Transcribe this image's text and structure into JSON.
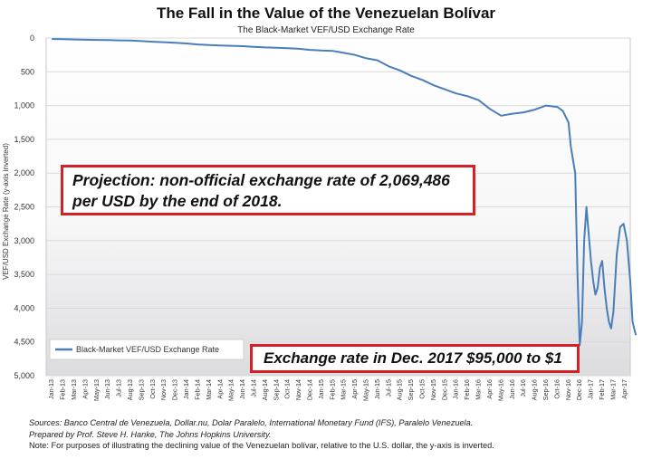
{
  "chart_data": {
    "type": "line",
    "title": "The Fall in the Value of the Venezuelan Bolívar",
    "subtitle": "The Black-Market VEF/USD Exchange Rate",
    "ylabel": "VEF/USD Exchange Rate (y-axis inverted)",
    "xlabel": "",
    "ylim": [
      0,
      5000
    ],
    "y_inverted": true,
    "y_ticks": [
      0,
      500,
      1000,
      1500,
      2000,
      2500,
      3000,
      3500,
      4000,
      4500,
      5000
    ],
    "y_tick_labels": [
      "0",
      "500",
      "1,000",
      "1,500",
      "2,000",
      "2,500",
      "3,000",
      "3,500",
      "4,000",
      "4,500",
      "5,000"
    ],
    "x_tick_labels": [
      "Jan-13",
      "Feb-13",
      "Mar-13",
      "Apr-13",
      "May-13",
      "Jun-13",
      "Jul-13",
      "Aug-13",
      "Sep-13",
      "Oct-13",
      "Nov-13",
      "Dec-13",
      "Jan-14",
      "Feb-14",
      "Mar-14",
      "Apr-14",
      "May-14",
      "Jun-14",
      "Jul-14",
      "Aug-14",
      "Sep-14",
      "Oct-14",
      "Nov-14",
      "Dec-14",
      "Jan-15",
      "Feb-15",
      "Mar-15",
      "Apr-15",
      "May-15",
      "Jun-15",
      "Jul-15",
      "Aug-15",
      "Sep-15",
      "Oct-15",
      "Nov-15",
      "Dec-15",
      "Jan-16",
      "Feb-16",
      "Mar-16",
      "Apr-16",
      "May-16",
      "Jun-16",
      "Jul-16",
      "Aug-16",
      "Sep-16",
      "Oct-16",
      "Nov-16",
      "Dec-16",
      "Jan-17",
      "Feb-17",
      "Mar-17",
      "Apr-17"
    ],
    "legend": "bottom-left",
    "legend_label": "Black-Market VEF/USD Exchange Rate",
    "grid": "horizontal",
    "series": [
      {
        "name": "Black-Market VEF/USD Exchange Rate",
        "color": "#4a7ebb",
        "x": [
          0,
          1,
          2,
          3,
          4,
          5,
          6,
          7,
          8,
          9,
          10,
          11,
          12,
          13,
          14,
          15,
          16,
          17,
          18,
          19,
          20,
          21,
          22,
          23,
          24,
          25,
          26,
          27,
          28,
          29,
          30,
          31,
          32,
          33,
          34,
          35,
          36,
          37,
          38,
          39,
          40,
          41,
          42,
          43,
          44,
          45,
          45.5,
          46,
          46.2,
          46.4,
          46.6,
          46.8,
          47,
          47.2,
          47.4,
          47.6,
          47.8,
          48,
          48.2,
          48.4,
          48.6,
          48.8,
          49,
          49.2,
          49.4,
          49.6,
          49.8,
          50,
          50.3,
          50.6,
          50.9,
          51.2,
          51.5,
          51.7,
          51.85,
          52
        ],
        "values": [
          15,
          18,
          22,
          25,
          28,
          30,
          35,
          38,
          45,
          55,
          62,
          70,
          80,
          95,
          105,
          110,
          115,
          120,
          130,
          140,
          145,
          150,
          160,
          175,
          185,
          190,
          220,
          250,
          300,
          330,
          420,
          480,
          560,
          620,
          700,
          760,
          820,
          860,
          920,
          1050,
          1150,
          1120,
          1100,
          1060,
          1000,
          1020,
          1080,
          1250,
          1600,
          1800,
          2000,
          3500,
          4550,
          4200,
          3000,
          2500,
          2900,
          3300,
          3600,
          3800,
          3700,
          3400,
          3300,
          3700,
          4000,
          4200,
          4300,
          4050,
          3200,
          2800,
          2750,
          3000,
          3600,
          4200,
          4300,
          4400
        ]
      }
    ],
    "annotations": [
      "Projection: non-official exchange rate of 2,069,486 per USD by the end of 2018.",
      "Exchange rate in Dec. 2017  $95,000 to $1"
    ]
  },
  "notes": {
    "sources": "Sources: Banco Central de Venezuela, Dollar.nu, Dolar Paralelo, International Monetary Fund (IFS), Paralelo Venezuela.",
    "prepared": "Prepared by Prof. Steve H. Hanke, The Johns Hopkins University.",
    "note": "Note: For purposes of illustrating the declining value of the Venezuelan bolívar, relative to the U.S. dollar, the y-axis is inverted."
  }
}
